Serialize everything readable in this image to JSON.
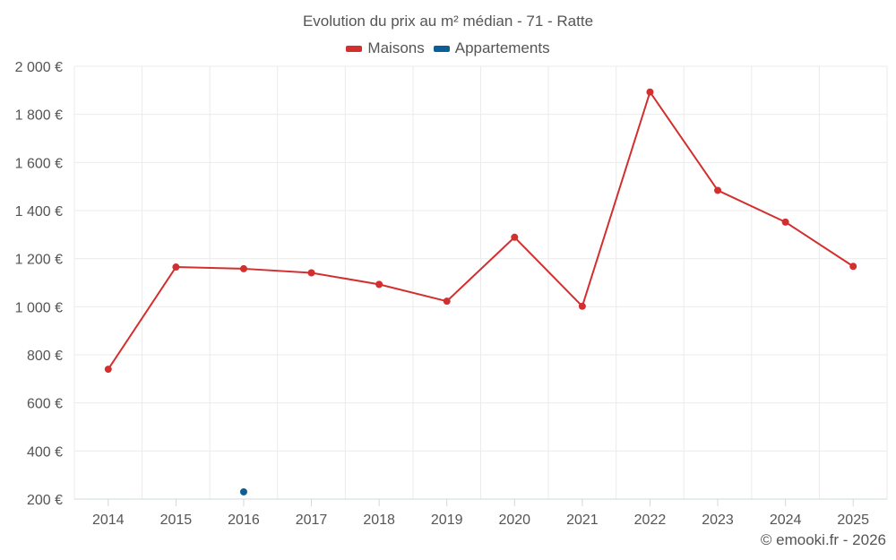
{
  "chart_data": {
    "type": "line",
    "title": "Evolution du prix au m² médian - 71 - Ratte",
    "categories": [
      "2014",
      "2015",
      "2016",
      "2017",
      "2018",
      "2019",
      "2020",
      "2021",
      "2022",
      "2023",
      "2024",
      "2025"
    ],
    "series": [
      {
        "name": "Maisons",
        "color": "#d32f2f",
        "values": [
          740,
          1165,
          1158,
          1141,
          1093,
          1023,
          1289,
          1002,
          1893,
          1484,
          1352,
          1168
        ]
      },
      {
        "name": "Appartements",
        "color": "#0b5f96",
        "values": [
          null,
          null,
          230,
          null,
          null,
          null,
          null,
          null,
          null,
          null,
          null,
          null
        ]
      }
    ],
    "yticks": [
      200,
      400,
      600,
      800,
      1000,
      1200,
      1400,
      1600,
      1800,
      2000
    ],
    "ytick_labels": [
      "200 €",
      "400 €",
      "600 €",
      "800 €",
      "1 000 €",
      "1 200 €",
      "1 400 €",
      "1 600 €",
      "1 800 €",
      "2 000 €"
    ],
    "ylim": [
      200,
      2000
    ],
    "grid": true,
    "legend_position": "top-center",
    "xlabel": "",
    "ylabel": ""
  },
  "credit": "© emooki.fr - 2026"
}
